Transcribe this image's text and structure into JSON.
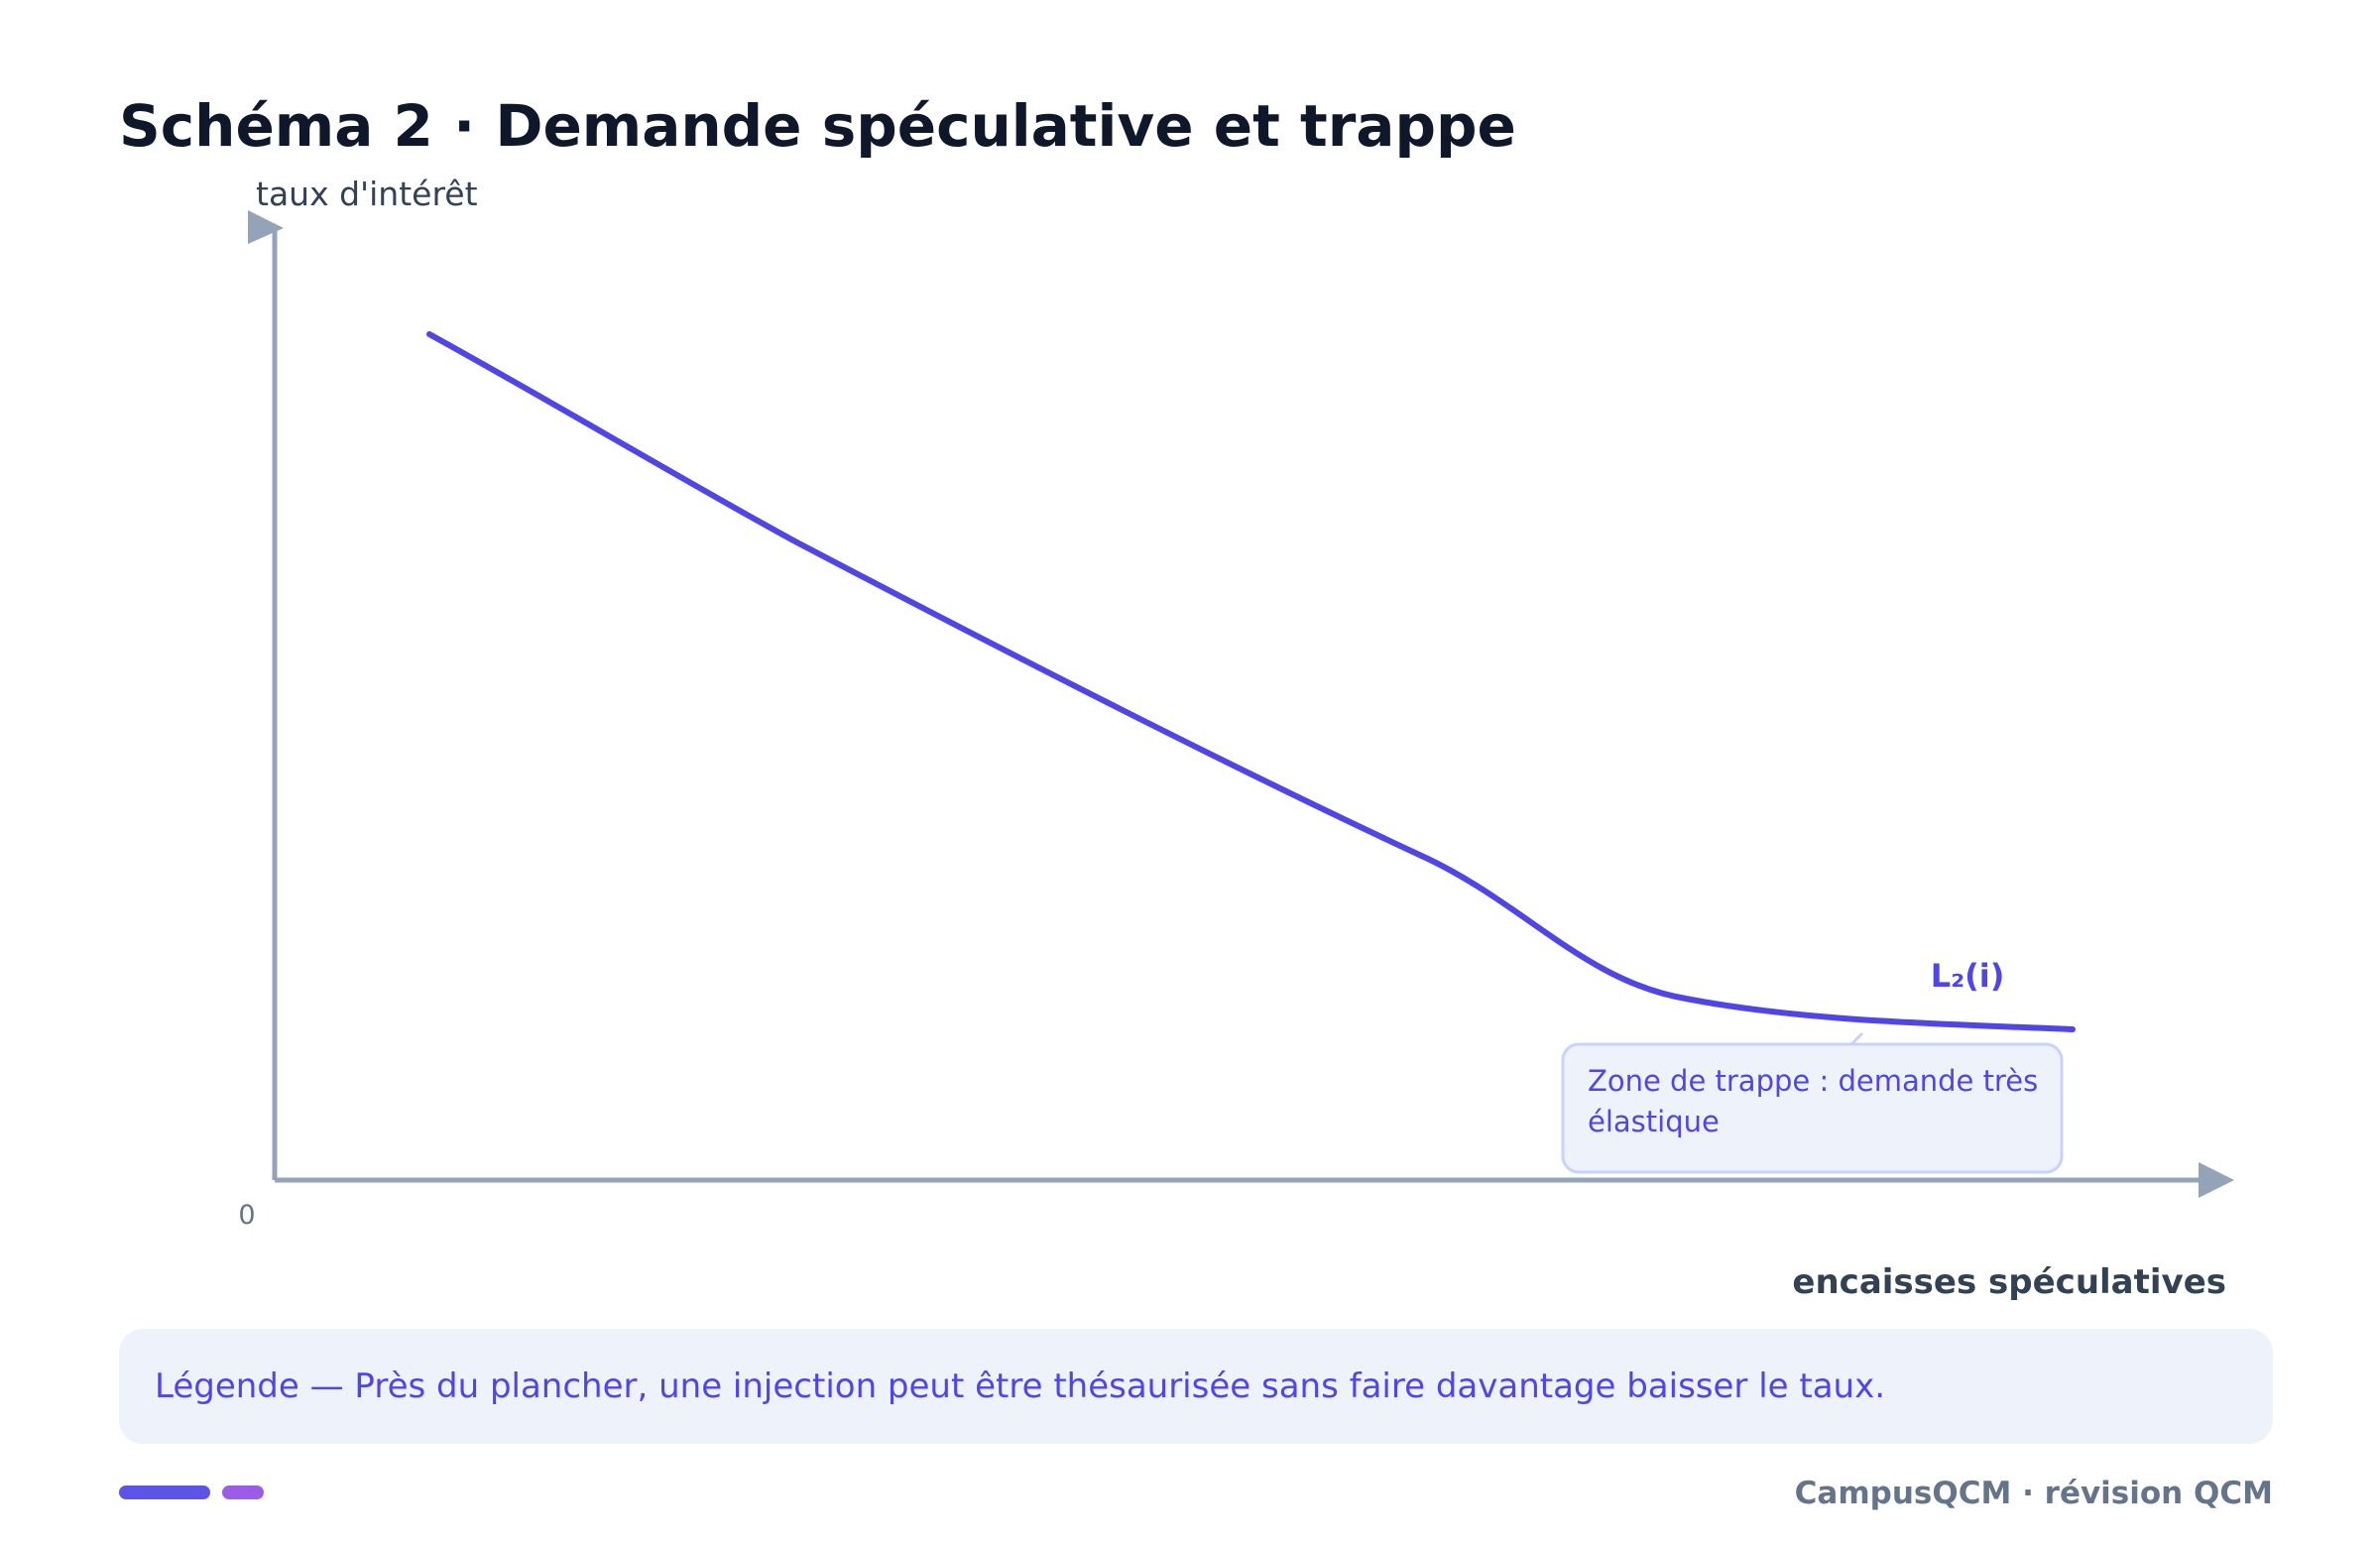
{
  "title": "Schéma 2 · Demande spéculative et trappe",
  "axes": {
    "y_label": "taux d'intérêt",
    "x_label": "encaisses spéculatives",
    "origin_label": "0"
  },
  "curve": {
    "label": "L₂(i)",
    "color": "#4f46e5"
  },
  "annotation": {
    "line1": "Zone de trappe : demande très",
    "line2": "élastique"
  },
  "legend": {
    "text": "Légende — Près du plancher, une injection peut être thésaurisée sans faire davantage baisser le taux."
  },
  "footer": {
    "brand": "CampusQCM · révision QCM"
  },
  "colors": {
    "title": "#0f172a",
    "axis": "#94a3b8",
    "curve": "#4f46e5",
    "annotation_bg": "#eef2fb",
    "annotation_border": "#c7d2fe",
    "legend_bg": "#eef2fb",
    "footer_accent_1": "#5b54e6",
    "footer_accent_2": "#9b5de5"
  }
}
